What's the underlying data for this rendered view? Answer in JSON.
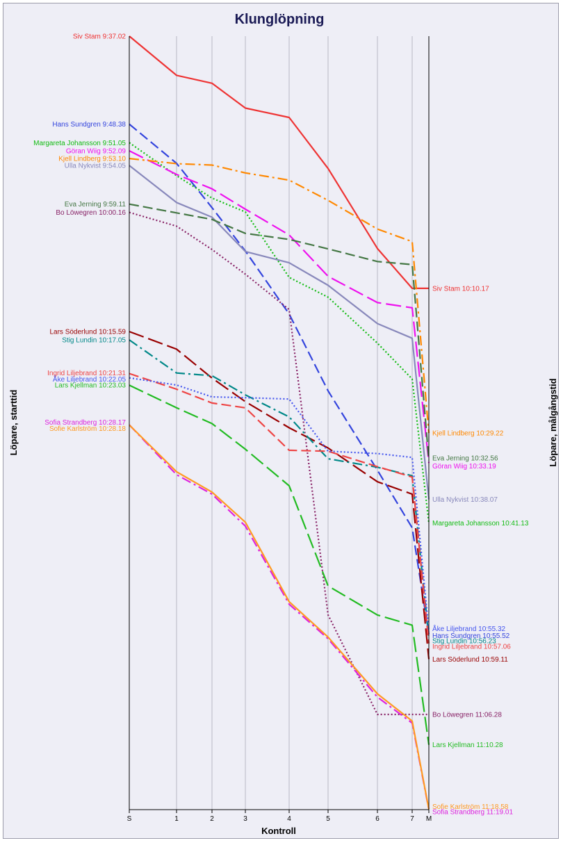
{
  "chart_data": {
    "type": "line",
    "title": "Klunglöpning",
    "xlabel": "Kontroll",
    "ylabel_left": "Löpare, starttid",
    "ylabel_right": "Löpare, målgångstid",
    "x_ticks": [
      "S",
      "1",
      "2",
      "3",
      "4",
      "5",
      "6",
      "7",
      "M"
    ],
    "grid": true,
    "series": [
      {
        "name": "Siv Stam",
        "start_label": "Siv Stam 9:37.02",
        "end_label": "Siv Stam 10:10.17",
        "color": "#ee3333",
        "dash": "solid",
        "values": [
          "9:37.02",
          "9:42.12",
          "9:43.15",
          "9:46.31",
          "9:47.45",
          "9:54.29",
          "10:05.02",
          "10:10.17",
          "10:10.17"
        ]
      },
      {
        "name": "Hans Sundgren",
        "start_label": "Hans Sundgren 9:48.38",
        "end_label": "Hans Sundgren 10:55.52",
        "color": "#3344dd",
        "dash": "dash",
        "values": [
          "9:48.38",
          "9:53.48",
          "9:59.39",
          "10:05.22",
          "10:13.40",
          "10:23.48",
          "10:34.16",
          "10:41.51",
          "10:55.52"
        ]
      },
      {
        "name": "Margareta Johansson",
        "start_label": "Margareta Johansson 9:51.05",
        "end_label": "Margareta Johansson 10:41.13",
        "color": "#11bb11",
        "dash": "dot",
        "values": [
          "9:51.05",
          "9:55.26",
          "9:58.23",
          "10:00.13",
          "10:08.50",
          "10:11.27",
          "10:17.31",
          "10:22.14",
          "10:41.13"
        ]
      },
      {
        "name": "Göran Wiig",
        "start_label": "Göran Wiig 9:52.09",
        "end_label": "Göran Wiig 10:33.19",
        "color": "#ee11ee",
        "dash": "longdash",
        "values": [
          "9:52.09",
          "9:55.16",
          "9:57.10",
          "9:59.51",
          "10:03.15",
          "10:08.42",
          "10:12.10",
          "10:12.51",
          "10:33.19"
        ]
      },
      {
        "name": "Kjell Lindberg",
        "start_label": "Kjell Lindberg 9:53.10",
        "end_label": "Kjell Lindberg 10:29.22",
        "color": "#ff8800",
        "dash": "dashdot",
        "values": [
          "9:53.10",
          "9:53.51",
          "9:54.02",
          "9:55.04",
          "9:56.01",
          "9:58.41",
          "10:02.28",
          "10:04.07",
          "10:29.22"
        ]
      },
      {
        "name": "Ulla Nykvist",
        "start_label": "Ulla Nykvist 9:54.05",
        "end_label": "Ulla Nykvist 10:38.07",
        "color": "#8888bb",
        "dash": "solid",
        "values": [
          "9:54.05",
          "9:58.58",
          "10:00.54",
          "10:05.26",
          "10:06.55",
          "10:09.53",
          "10:14.56",
          "10:16.52",
          "10:38.07"
        ]
      },
      {
        "name": "Eva Jerning",
        "start_label": "Eva Jerning 9:59.11",
        "end_label": "Eva Jerning 10:32.56",
        "color": "#447744",
        "dash": "dash",
        "values": [
          "9:59.11",
          "10:00.20",
          "10:01.12",
          "10:03.02",
          "10:03.50",
          "10:05.05",
          "10:06.45",
          "10:07.09",
          "10:32.56"
        ]
      },
      {
        "name": "Bo Löwegren",
        "start_label": "Bo Löwegren 10:00.16",
        "end_label": "Bo Löwegren 11:06.28",
        "color": "#882266",
        "dash": "dot",
        "values": [
          "10:00.16",
          "10:02.05",
          "10:05.10",
          "10:08.25",
          "10:13.05",
          "10:53.20",
          "11:06.28",
          "11:06.28",
          "11:06.28"
        ]
      },
      {
        "name": "Lars Söderlund",
        "start_label": "Lars Söderlund 10:15.59",
        "end_label": "Lars Söderlund 10:59.11",
        "color": "#990000",
        "dash": "longdash",
        "values": [
          "10:15.59",
          "10:18.18",
          "10:22.07",
          "10:25.13",
          "10:28.40",
          "10:31.20",
          "10:35.47",
          "10:37.25",
          "10:59.11"
        ]
      },
      {
        "name": "Stig Lundin",
        "start_label": "Stig Lundin 10:17.05",
        "end_label": "Stig Lundin 10:56.23",
        "color": "#008888",
        "dash": "dashdot",
        "values": [
          "10:17.05",
          "10:21.27",
          "10:21.48",
          "10:24.20",
          "10:27.14",
          "10:32.45",
          "10:33.52",
          "10:35.00",
          "10:56.23"
        ]
      },
      {
        "name": "Ingrid Liljebrand",
        "start_label": "Ingrid Liljebrand 10:21.31",
        "end_label": "Ingrid Liljebrand 10:57.06",
        "color": "#ee4444",
        "dash": "dash",
        "values": [
          "10:21.31",
          "10:23.35",
          "10:25.24",
          "10:26.02",
          "10:31.38",
          "10:31.46",
          "10:33.48",
          "10:35.10",
          "10:57.06"
        ]
      },
      {
        "name": "Åke Liljebrand",
        "start_label": "Åke Liljebrand 10:22.05",
        "end_label": "Åke Liljebrand 10:55.32",
        "color": "#4455ee",
        "dash": "dot",
        "values": [
          "10:22.05",
          "10:23.02",
          "10:24.36",
          "10:24.42",
          "10:24.53",
          "10:31.46",
          "10:32.04",
          "10:32.35",
          "10:55.32"
        ]
      },
      {
        "name": "Lars Kjellman",
        "start_label": "Lars Kjellman 10:23.03",
        "end_label": "Lars Kjellman 11:10.28",
        "color": "#22bb22",
        "dash": "longdash",
        "values": [
          "10:23.03",
          "10:26.02",
          "10:28.07",
          "10:31.30",
          "10:36.19",
          "10:49.31",
          "10:53.21",
          "10:54.42",
          "11:10.28"
        ]
      },
      {
        "name": "Sofia Strandberg",
        "start_label": "Sofia Strandberg 10:28.17",
        "end_label": "Sofia Strandberg 11:19.01",
        "color": "#dd22dd",
        "dash": "dashdot",
        "values": [
          "10:28.17",
          "10:34.51",
          "10:37.25",
          "10:41.38",
          "10:51.56",
          "10:56.29",
          "11:04.11",
          "11:07.36",
          "11:19.01"
        ]
      },
      {
        "name": "Sofie Karlström",
        "start_label": "Sofie Karlström 10:28.18",
        "end_label": "Sofie Karlström 11:18.58",
        "color": "#ff9922",
        "dash": "solid",
        "values": [
          "10:28.18",
          "10:34.28",
          "10:37.09",
          "10:41.07",
          "10:51.36",
          "10:56.16",
          "11:03.45",
          "11:07.20",
          "11:18.58"
        ]
      }
    ]
  }
}
